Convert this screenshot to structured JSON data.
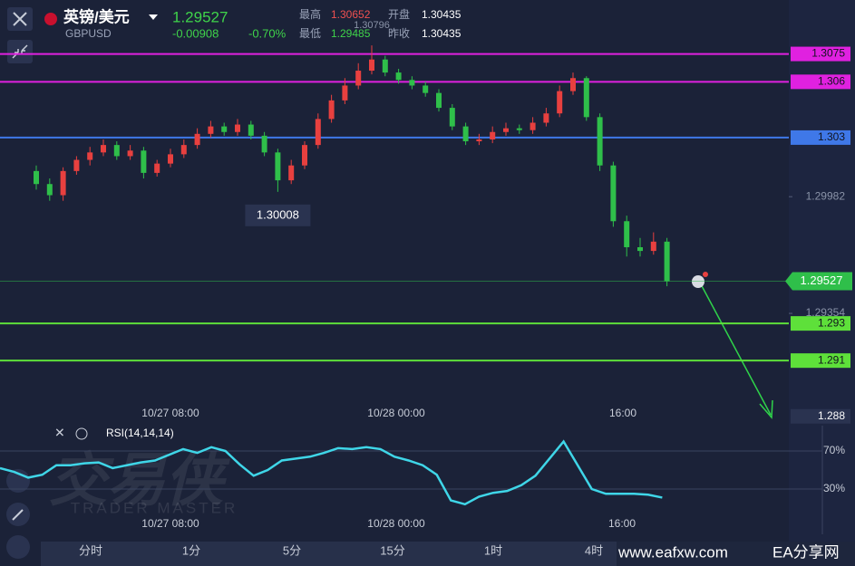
{
  "header": {
    "pair": "英镑/美元",
    "symbol": "GBPUSD",
    "price": 1.29527,
    "change": "-0.00908",
    "change_pct": "-0.70%",
    "high_label": "最高",
    "high": 1.30652,
    "open_label": "开盘",
    "open": 1.30435,
    "low_label": "最低",
    "low": 1.29485,
    "prev_label": "昨收",
    "prev": 1.30435
  },
  "chart_data": [
    {
      "type": "candlestick",
      "open": [
        1.3012,
        1.3005,
        1.2999,
        1.3012,
        1.3018,
        1.3022,
        1.3026,
        1.302,
        1.3023,
        1.3011,
        1.3016,
        1.3021,
        1.3026,
        1.3032,
        1.3036,
        1.3033,
        1.3037,
        1.3031,
        1.3022,
        1.3007,
        1.3015,
        1.3026,
        1.304,
        1.305,
        1.3058,
        1.3066,
        1.3072,
        1.3065,
        1.3061,
        1.3058,
        1.3054,
        1.3046,
        1.3036,
        1.3028,
        1.3029,
        1.3033,
        1.3035,
        1.3034,
        1.3038,
        1.3043,
        1.3055,
        1.3062,
        1.3041,
        1.3015,
        1.2985,
        1.2971,
        1.2969,
        1.2974
      ],
      "high": [
        1.3015,
        1.3008,
        1.3014,
        1.302,
        1.3025,
        1.3029,
        1.3028,
        1.3026,
        1.3025,
        1.3018,
        1.3024,
        1.3029,
        1.3035,
        1.3039,
        1.3038,
        1.304,
        1.3039,
        1.3033,
        1.3024,
        1.3018,
        1.3028,
        1.3043,
        1.3053,
        1.3062,
        1.307,
        1.30796,
        1.3074,
        1.3067,
        1.3063,
        1.306,
        1.3056,
        1.3048,
        1.3038,
        1.3032,
        1.3036,
        1.3038,
        1.3037,
        1.3041,
        1.3046,
        1.3058,
        1.3065,
        1.3063,
        1.3043,
        1.3017,
        1.2988,
        1.2976,
        1.2979,
        1.2976
      ],
      "low": [
        1.3002,
        1.2996,
        1.2996,
        1.301,
        1.3015,
        1.302,
        1.3018,
        1.3018,
        1.3008,
        1.3009,
        1.3014,
        1.3019,
        1.3024,
        1.303,
        1.3031,
        1.3031,
        1.3029,
        1.302,
        1.30008,
        1.3005,
        1.3013,
        1.3024,
        1.3038,
        1.3048,
        1.3056,
        1.3064,
        1.3063,
        1.3059,
        1.3056,
        1.3052,
        1.3044,
        1.3034,
        1.3026,
        1.3026,
        1.3027,
        1.3031,
        1.3032,
        1.3032,
        1.3036,
        1.3041,
        1.3053,
        1.3039,
        1.3012,
        1.2982,
        1.2966,
        1.2966,
        1.2967,
        1.295
      ],
      "close": [
        1.3005,
        1.2999,
        1.3012,
        1.3018,
        1.3022,
        1.3026,
        1.302,
        1.3023,
        1.3011,
        1.3016,
        1.3021,
        1.3026,
        1.3032,
        1.3036,
        1.3033,
        1.3037,
        1.3031,
        1.3022,
        1.3007,
        1.3015,
        1.3026,
        1.304,
        1.305,
        1.3058,
        1.3066,
        1.3072,
        1.3065,
        1.3061,
        1.3058,
        1.3054,
        1.3046,
        1.3036,
        1.3028,
        1.3029,
        1.3033,
        1.3035,
        1.3034,
        1.3038,
        1.3043,
        1.3055,
        1.3062,
        1.3041,
        1.3015,
        1.2985,
        1.2971,
        1.2969,
        1.2974,
        1.29527
      ],
      "up_color": "#e8403f",
      "down_color": "#2fbf4a",
      "ylim": [
        1.2875,
        1.3105
      ],
      "yticks": [
        1.29982,
        1.29354
      ],
      "levels": [
        {
          "value": 1.3075,
          "color": "#e021e0"
        },
        {
          "value": 1.306,
          "color": "#e021e0"
        },
        {
          "value": 1.303,
          "color": "#3f78e8"
        },
        {
          "value": 1.293,
          "color": "#5ee03a"
        },
        {
          "value": 1.291,
          "color": "#5ee03a"
        },
        {
          "value": 1.288,
          "color": "#2a3350"
        }
      ],
      "time_labels": [
        "10/27 08:00",
        "10/28 00:00",
        "16:00"
      ]
    },
    {
      "type": "line",
      "title": "RSI(14,14,14)",
      "color": "#3fd6e8",
      "values": [
        52,
        48,
        42,
        45,
        55,
        55,
        57,
        58,
        52,
        55,
        58,
        60,
        66,
        72,
        68,
        74,
        70,
        56,
        44,
        50,
        60,
        62,
        64,
        68,
        73,
        72,
        74,
        72,
        64,
        60,
        55,
        45,
        18,
        14,
        22,
        26,
        28,
        34,
        44,
        62,
        80,
        55,
        30,
        25,
        25,
        25,
        24,
        21
      ],
      "ylim": [
        0,
        100
      ],
      "yticks": [
        {
          "value": 70,
          "label": "70%"
        },
        {
          "value": 30,
          "label": "30%"
        }
      ],
      "time_labels": [
        "10/27 08:00",
        "10/28 00:00",
        "16:00"
      ]
    }
  ],
  "tabs": [
    "分时",
    "1分",
    "5分",
    "15分",
    "1时",
    "4时"
  ],
  "watermark": {
    "logo": "交易侠",
    "sub": "TRADER MASTER",
    "site": "www.eafxw.com",
    "site_name": "EA分享网"
  }
}
